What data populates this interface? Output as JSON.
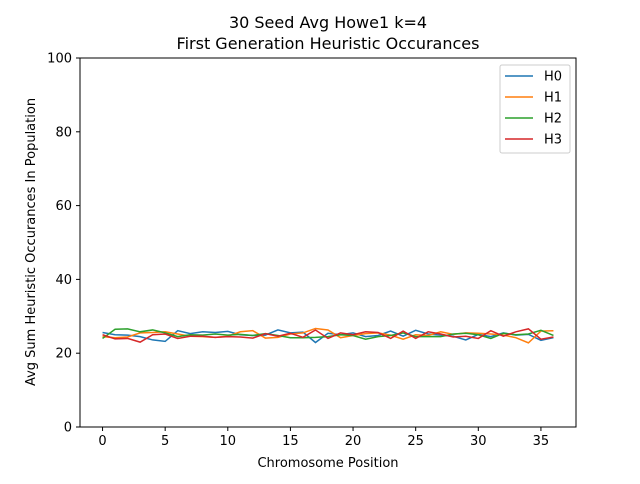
{
  "chart_data": {
    "type": "line",
    "title_line1": "30 Seed Avg Howe1 k=4",
    "title_line2": "First Generation Heuristic Occurances",
    "xlabel": "Chromosome Position",
    "ylabel": "Avg Sum Heuristic Occurances In Population",
    "xlim": [
      -1.8,
      37.8
    ],
    "ylim": [
      0,
      100
    ],
    "xticks": [
      0,
      5,
      10,
      15,
      20,
      25,
      30,
      35
    ],
    "yticks": [
      0,
      20,
      40,
      60,
      80,
      100
    ],
    "legend_position": "upper right",
    "x": [
      0,
      1,
      2,
      3,
      4,
      5,
      6,
      7,
      8,
      9,
      10,
      11,
      12,
      13,
      14,
      15,
      16,
      17,
      18,
      19,
      20,
      21,
      22,
      23,
      24,
      25,
      26,
      27,
      28,
      29,
      30,
      31,
      32,
      33,
      34,
      35,
      36
    ],
    "series": [
      {
        "name": "H0",
        "color": "#1f77b4",
        "values": [
          25.6,
          25.0,
          24.9,
          24.5,
          23.6,
          23.2,
          26.1,
          25.3,
          25.8,
          25.6,
          25.9,
          25.0,
          24.8,
          24.9,
          26.3,
          25.5,
          25.7,
          22.9,
          25.4,
          25.0,
          25.5,
          24.5,
          24.8,
          26.0,
          24.6,
          26.2,
          25.2,
          24.9,
          24.6,
          23.6,
          25.1,
          24.5,
          25.5,
          24.9,
          25.1,
          23.5,
          24.2
        ]
      },
      {
        "name": "H1",
        "color": "#ff7f0e",
        "values": [
          24.5,
          24.2,
          24.4,
          25.5,
          25.6,
          25.8,
          25.2,
          24.6,
          24.5,
          24.3,
          24.6,
          25.8,
          26.1,
          24.1,
          24.3,
          25.2,
          25.5,
          26.7,
          26.3,
          24.2,
          24.8,
          25.3,
          25.5,
          24.9,
          23.8,
          25.0,
          24.8,
          25.8,
          25.1,
          25.5,
          25.4,
          25.2,
          24.9,
          24.2,
          22.8,
          26.0,
          26.1
        ]
      },
      {
        "name": "H2",
        "color": "#2ca02c",
        "values": [
          24.0,
          26.5,
          26.6,
          25.8,
          26.3,
          25.5,
          24.5,
          25.0,
          24.9,
          25.2,
          24.9,
          25.1,
          24.8,
          25.3,
          24.8,
          24.2,
          24.2,
          24.3,
          24.5,
          25.0,
          24.8,
          23.8,
          24.5,
          24.8,
          25.5,
          24.5,
          24.5,
          24.5,
          25.2,
          25.4,
          25.0,
          24.0,
          25.4,
          25.0,
          25.2,
          26.2,
          24.8
        ]
      },
      {
        "name": "H3",
        "color": "#d62728",
        "values": [
          25.0,
          23.9,
          24.0,
          23.0,
          25.0,
          25.2,
          24.0,
          24.6,
          24.6,
          24.3,
          24.5,
          24.4,
          24.1,
          25.3,
          24.6,
          25.4,
          24.3,
          26.3,
          24.0,
          25.5,
          25.0,
          25.8,
          25.6,
          24.0,
          26.0,
          24.0,
          25.8,
          25.2,
          24.4,
          24.6,
          24.0,
          26.1,
          24.6,
          25.8,
          26.6,
          23.8,
          24.4
        ]
      }
    ]
  }
}
